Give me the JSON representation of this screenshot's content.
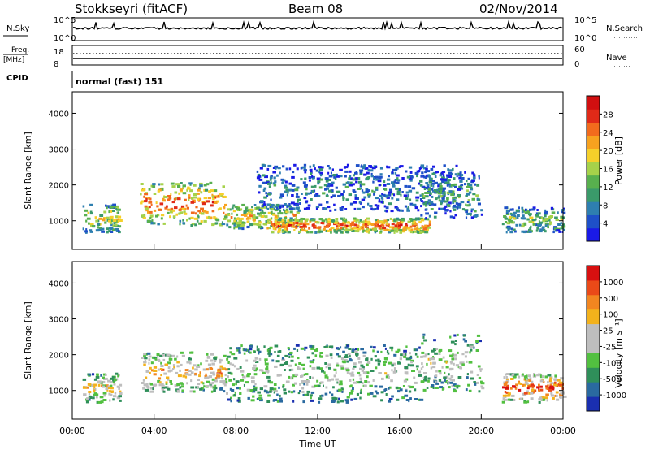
{
  "header": {
    "title": "Stokkseyri (fitACF)",
    "beam": "Beam 08",
    "date": "02/Nov/2014"
  },
  "status_panels": {
    "nsky_label": "N.Sky",
    "nsearch_label": "N.Search",
    "nsky_axis": [
      "10^5",
      "10^0"
    ],
    "nsearch_axis": [
      "10^5",
      "10^0"
    ],
    "freq_label_line1": "Freq.",
    "freq_label_line2": "[MHz]",
    "freq_axis": [
      "18",
      "8"
    ],
    "nave_label": "Nave",
    "nave_axis": [
      "60",
      "0"
    ],
    "cpid_label": "CPID",
    "cpid_value": "normal (fast) 151"
  },
  "chart_data": [
    {
      "type": "heatmap",
      "title": "",
      "xlabel": "Time UT",
      "ylabel": "Slant Range [km]",
      "x_ticks": [
        "00:00",
        "04:00",
        "08:00",
        "12:00",
        "16:00",
        "20:00",
        "00:00"
      ],
      "xlim": [
        0,
        24
      ],
      "y_ticks": [
        "1000",
        "2000",
        "3000",
        "4000"
      ],
      "ylim": [
        200,
        4600
      ],
      "colorbar": {
        "label": "Power [dB]",
        "ticks": [
          "4",
          "8",
          "12",
          "16",
          "20",
          "24",
          "28"
        ],
        "colors": [
          "#1a1ae6",
          "#1e50c8",
          "#2e7fb0",
          "#3a9a6a",
          "#58b04e",
          "#a6d24a",
          "#f5d02a",
          "#f7a21f",
          "#f26b1d",
          "#e02a18",
          "#d10f10"
        ]
      },
      "echo_bands": [
        {
          "t_start": 0.5,
          "t_end": 2.3,
          "r_low": 700,
          "r_high": 1500,
          "level": 0.55
        },
        {
          "t_start": 3.3,
          "t_end": 7.5,
          "r_low": 900,
          "r_high": 2100,
          "level": 0.8
        },
        {
          "t_start": 7.5,
          "t_end": 11.0,
          "r_low": 800,
          "r_high": 1500,
          "level": 0.6
        },
        {
          "t_start": 9.5,
          "t_end": 17.5,
          "r_low": 700,
          "r_high": 1100,
          "level": 0.85
        },
        {
          "t_start": 9.0,
          "t_end": 19.0,
          "r_low": 1300,
          "r_high": 2600,
          "level": 0.25
        },
        {
          "t_start": 17.0,
          "t_end": 20.0,
          "r_low": 1100,
          "r_high": 2400,
          "level": 0.35
        },
        {
          "t_start": 21.0,
          "t_end": 24.0,
          "r_low": 700,
          "r_high": 1400,
          "level": 0.45
        }
      ]
    },
    {
      "type": "heatmap",
      "title": "",
      "xlabel": "Time UT",
      "ylabel": "Slant Range [km]",
      "x_ticks": [
        "00:00",
        "04:00",
        "08:00",
        "12:00",
        "16:00",
        "20:00",
        "00:00"
      ],
      "xlim": [
        0,
        24
      ],
      "y_ticks": [
        "1000",
        "2000",
        "3000",
        "4000"
      ],
      "ylim": [
        200,
        4600
      ],
      "colorbar": {
        "label": "Velocity [m s⁻¹]",
        "ticks": [
          "1000",
          "500",
          "100",
          "25",
          "-25",
          "-100",
          "-500",
          "-1000"
        ],
        "colors": [
          "#1a2fb0",
          "#2a6aa0",
          "#2f8f5a",
          "#52c040",
          "#bebebe",
          "#bebebe",
          "#f3b21c",
          "#f28620",
          "#ea4a18",
          "#d81010"
        ]
      },
      "echo_bands": [
        {
          "t_start": 0.5,
          "t_end": 2.3,
          "r_low": 700,
          "r_high": 1500,
          "level": 0.6
        },
        {
          "t_start": 3.3,
          "t_end": 7.5,
          "r_low": 1000,
          "r_high": 2100,
          "level": 0.7
        },
        {
          "t_start": 7.5,
          "t_end": 17.0,
          "r_low": 700,
          "r_high": 2300,
          "level": 0.45
        },
        {
          "t_start": 17.0,
          "t_end": 20.0,
          "r_low": 1000,
          "r_high": 2600,
          "level": 0.5
        },
        {
          "t_start": 21.0,
          "t_end": 24.0,
          "r_low": 700,
          "r_high": 1500,
          "level": 0.85
        }
      ]
    }
  ]
}
